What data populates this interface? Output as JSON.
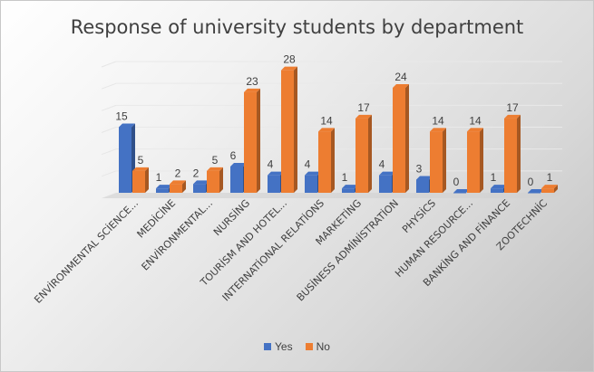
{
  "chart_data": {
    "type": "bar",
    "title": "Response of university students by department",
    "categories": [
      "ENVİRONMENTAL SCİENCE...",
      "MEDİCİNE",
      "ENVİRONMENTAL...",
      "NURSİNG",
      "TOURİSM AND HOTEL...",
      "INTERNATİONAL RELATİONS",
      "MARKETİNG",
      "BUSİNESS ADMİNİSTRATİON",
      "PHYSİCS",
      "HUMAN RESOURCE...",
      "BANKİNG AND FİNANCE",
      "ZOOTECHNİC"
    ],
    "series": [
      {
        "name": "Yes",
        "color": "#4472c4",
        "values": [
          15,
          1,
          2,
          6,
          4,
          4,
          1,
          4,
          3,
          0,
          1,
          0
        ]
      },
      {
        "name": "No",
        "color": "#ed7d31",
        "values": [
          5,
          2,
          5,
          23,
          28,
          14,
          17,
          24,
          14,
          14,
          17,
          1
        ]
      }
    ],
    "ylim": [
      0,
      30
    ],
    "grid": true,
    "legend_position": "bottom"
  }
}
